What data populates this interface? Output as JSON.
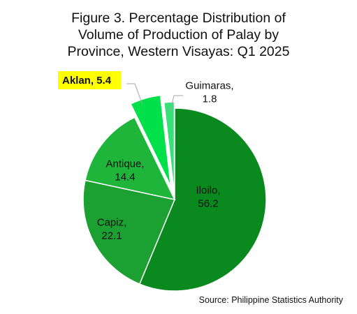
{
  "title_lines": [
    "Figure 3. Percentage Distribution of",
    "Volume of Production of Palay by",
    "Province, Western Visayas: Q1 2025"
  ],
  "source": "Source: Philippine Statistics Authority",
  "chart_data": {
    "type": "pie",
    "title": "Figure 3. Percentage Distribution of Volume of Production of Palay by Province, Western Visayas: Q1 2025",
    "slices": [
      {
        "label": "Iloilo",
        "value": 56.2,
        "color": "#0a8a1e",
        "text": [
          "Iloilo,",
          "56.2"
        ]
      },
      {
        "label": "Capiz",
        "value": 22.1,
        "color": "#1ba031",
        "text": [
          "Capiz,",
          "22.1"
        ]
      },
      {
        "label": "Antique",
        "value": 14.4,
        "color": "#1fb53a",
        "text": [
          "Antique,",
          "14.4"
        ]
      },
      {
        "label": "Aklan",
        "value": 5.4,
        "color": "#00e04a",
        "text": [
          "Aklan, 5.4"
        ],
        "highlight": "#ffff00"
      },
      {
        "label": "Guimaras",
        "value": 1.8,
        "color": "#38e077",
        "text": [
          "Guimaras,",
          "1.8"
        ]
      }
    ],
    "start": "12 o'clock",
    "direction": "clockwise",
    "exploded": [
      "Aklan",
      "Guimaras"
    ]
  }
}
